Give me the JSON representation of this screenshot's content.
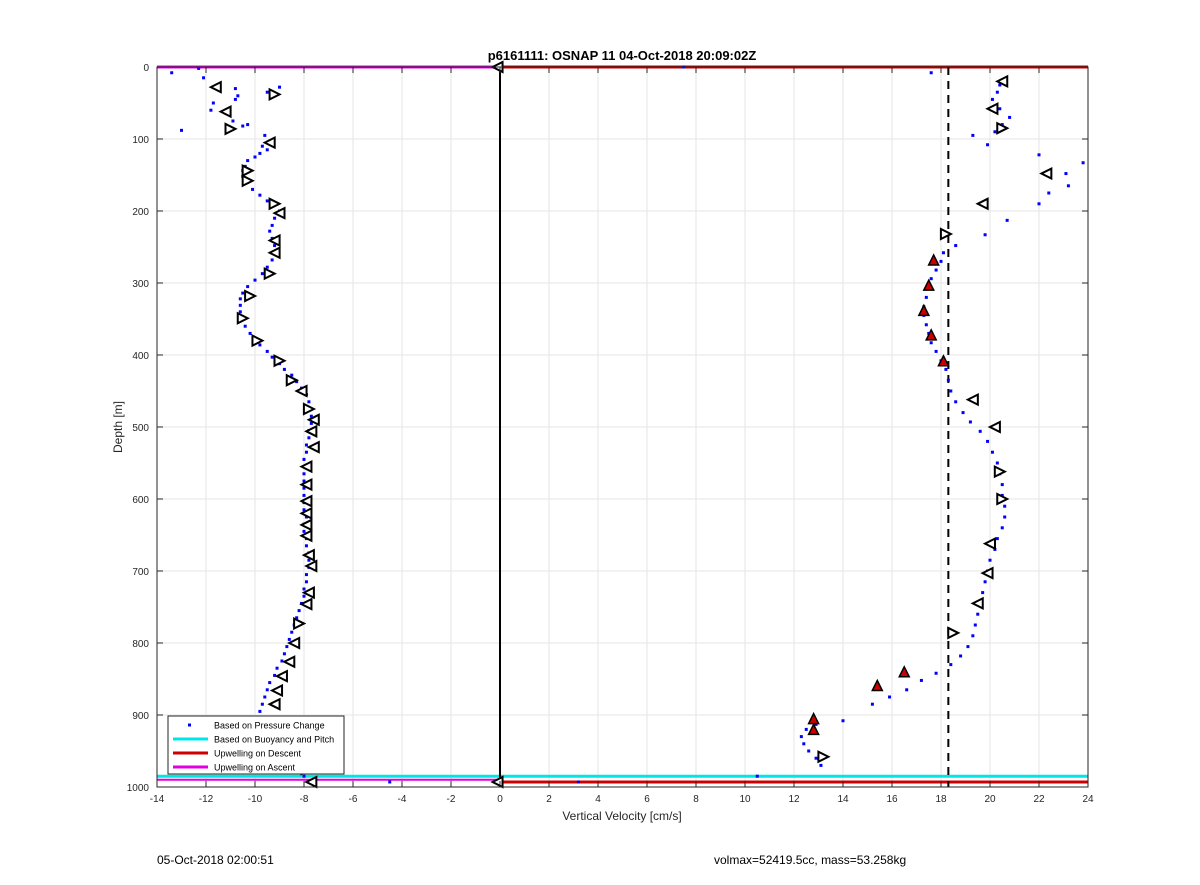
{
  "chart_data": {
    "type": "scatter",
    "title": "p6161111: OSNAP 11 04-Oct-2018 20:09:02Z",
    "xlabel": "Vertical Velocity [cm/s]",
    "ylabel": "Depth [m]",
    "xlim": [
      -14,
      24
    ],
    "ylim": [
      0,
      1000
    ],
    "y_reversed": true,
    "grid": true,
    "xticks": [
      "-14",
      "-12",
      "-10",
      "-8",
      "-6",
      "-4",
      "-2",
      "0",
      "2",
      "4",
      "6",
      "8",
      "10",
      "12",
      "14",
      "16",
      "18",
      "20",
      "22",
      "24"
    ],
    "yticks": [
      "0",
      "100",
      "200",
      "300",
      "400",
      "500",
      "600",
      "700",
      "800",
      "900",
      "1000"
    ],
    "legend": {
      "location": "bottom-left",
      "entries": [
        {
          "label": "Based on Pressure Change",
          "color": "#0000ff"
        },
        {
          "label": "Based on Buoyancy and Pitch",
          "color": "#00e5e5"
        },
        {
          "label": "Upwelling on Descent",
          "color": "#cc0000"
        },
        {
          "label": "Upwelling on Ascent",
          "color": "#e000e0"
        }
      ]
    },
    "colors": {
      "pressure": "#0000ff",
      "buoyancy": "#00e5e5",
      "descent": "#cc0000",
      "ascent": "#e000e0"
    },
    "reference_lines": {
      "zero_x": 0,
      "dashed_x": 18.3,
      "top_red_depth": 0,
      "top_magenta_depth": 0,
      "bottom_cyan_depth": 985,
      "bottom_red_depth": 993,
      "bottom_magenta_depth": 990
    },
    "descent_points": [
      [
        -13.4,
        8
      ],
      [
        -12.3,
        2
      ],
      [
        -12.1,
        15
      ],
      [
        -11.7,
        50
      ],
      [
        -11.8,
        60
      ],
      [
        -11.1,
        60
      ],
      [
        -10.8,
        45
      ],
      [
        -10.7,
        40
      ],
      [
        -10.9,
        75
      ],
      [
        -10.5,
        82
      ],
      [
        -10.3,
        80
      ],
      [
        -9.6,
        95
      ],
      [
        -9.4,
        103
      ],
      [
        -9.7,
        110
      ],
      [
        -9.5,
        115
      ],
      [
        -9.8,
        120
      ],
      [
        -10.0,
        125
      ],
      [
        -10.3,
        130
      ],
      [
        -10.4,
        138
      ],
      [
        -10.5,
        144
      ],
      [
        -10.5,
        152
      ],
      [
        -10.3,
        160
      ],
      [
        -10.1,
        170
      ],
      [
        -9.8,
        178
      ],
      [
        -9.5,
        186
      ],
      [
        -9.1,
        190
      ],
      [
        -9.0,
        200
      ],
      [
        -9.2,
        210
      ],
      [
        -9.3,
        220
      ],
      [
        -9.4,
        228
      ],
      [
        -9.3,
        238
      ],
      [
        -9.2,
        248
      ],
      [
        -9.3,
        258
      ],
      [
        -9.3,
        268
      ],
      [
        -9.5,
        278
      ],
      [
        -9.7,
        287
      ],
      [
        -10.0,
        296
      ],
      [
        -10.3,
        305
      ],
      [
        -10.5,
        314
      ],
      [
        -10.6,
        322
      ],
      [
        -10.6,
        331
      ],
      [
        -10.6,
        340
      ],
      [
        -10.5,
        350
      ],
      [
        -10.4,
        360
      ],
      [
        -10.2,
        370
      ],
      [
        -10.0,
        378
      ],
      [
        -9.8,
        386
      ],
      [
        -9.5,
        395
      ],
      [
        -9.3,
        403
      ],
      [
        -9.0,
        412
      ],
      [
        -8.8,
        420
      ],
      [
        -8.5,
        428
      ],
      [
        -8.3,
        437
      ],
      [
        -8.1,
        446
      ],
      [
        -7.9,
        455
      ],
      [
        -7.8,
        465
      ],
      [
        -7.7,
        475
      ],
      [
        -7.7,
        485
      ],
      [
        -7.7,
        495
      ],
      [
        -7.8,
        505
      ],
      [
        -7.8,
        515
      ],
      [
        -7.9,
        525
      ],
      [
        -7.9,
        535
      ],
      [
        -8.0,
        545
      ],
      [
        -8.0,
        555
      ],
      [
        -8.0,
        565
      ],
      [
        -8.0,
        575
      ],
      [
        -8.0,
        585
      ],
      [
        -8.0,
        595
      ],
      [
        -8.0,
        605
      ],
      [
        -8.0,
        615
      ],
      [
        -7.9,
        625
      ],
      [
        -8.0,
        635
      ],
      [
        -8.0,
        645
      ],
      [
        -7.9,
        655
      ],
      [
        -7.9,
        665
      ],
      [
        -7.8,
        675
      ],
      [
        -7.8,
        685
      ],
      [
        -7.8,
        695
      ],
      [
        -7.9,
        705
      ],
      [
        -7.9,
        715
      ],
      [
        -8.0,
        725
      ],
      [
        -8.0,
        735
      ],
      [
        -8.1,
        745
      ],
      [
        -8.2,
        755
      ],
      [
        -8.3,
        765
      ],
      [
        -8.4,
        775
      ],
      [
        -8.5,
        785
      ],
      [
        -8.6,
        795
      ],
      [
        -8.7,
        805
      ],
      [
        -8.8,
        815
      ],
      [
        -8.9,
        825
      ],
      [
        -9.1,
        835
      ],
      [
        -9.2,
        845
      ],
      [
        -9.4,
        855
      ],
      [
        -9.5,
        865
      ],
      [
        -9.6,
        875
      ],
      [
        -9.7,
        885
      ],
      [
        -9.8,
        895
      ],
      [
        -9.9,
        905
      ],
      [
        -9.9,
        915
      ],
      [
        -9.7,
        925
      ],
      [
        -9.5,
        935
      ],
      [
        -9.2,
        945
      ],
      [
        -8.9,
        955
      ],
      [
        -8.6,
        965
      ],
      [
        -8.3,
        975
      ],
      [
        -8.0,
        985
      ],
      [
        -4.5,
        993
      ],
      [
        -13.0,
        88
      ],
      [
        -9.5,
        35
      ],
      [
        -9.0,
        28
      ],
      [
        -10.8,
        30
      ]
    ],
    "ascent_points": [
      [
        17.6,
        8
      ],
      [
        7.5,
        0
      ],
      [
        20.4,
        25
      ],
      [
        20.3,
        35
      ],
      [
        20.1,
        45
      ],
      [
        20.4,
        58
      ],
      [
        20.8,
        70
      ],
      [
        20.5,
        80
      ],
      [
        20.2,
        90
      ],
      [
        19.3,
        95
      ],
      [
        19.9,
        108
      ],
      [
        22.0,
        122
      ],
      [
        23.8,
        133
      ],
      [
        23.1,
        148
      ],
      [
        23.2,
        165
      ],
      [
        22.4,
        175
      ],
      [
        22.0,
        190
      ],
      [
        20.7,
        213
      ],
      [
        19.8,
        233
      ],
      [
        18.6,
        248
      ],
      [
        18.1,
        258
      ],
      [
        18.0,
        270
      ],
      [
        17.8,
        282
      ],
      [
        17.6,
        294
      ],
      [
        17.5,
        308
      ],
      [
        17.4,
        320
      ],
      [
        17.3,
        333
      ],
      [
        17.3,
        345
      ],
      [
        17.4,
        358
      ],
      [
        17.5,
        370
      ],
      [
        17.6,
        383
      ],
      [
        17.8,
        395
      ],
      [
        18.0,
        408
      ],
      [
        18.2,
        420
      ],
      [
        18.3,
        435
      ],
      [
        18.4,
        450
      ],
      [
        18.6,
        465
      ],
      [
        18.9,
        480
      ],
      [
        19.2,
        493
      ],
      [
        19.6,
        506
      ],
      [
        19.9,
        520
      ],
      [
        20.1,
        535
      ],
      [
        20.3,
        550
      ],
      [
        20.4,
        565
      ],
      [
        20.5,
        580
      ],
      [
        20.5,
        595
      ],
      [
        20.6,
        610
      ],
      [
        20.6,
        625
      ],
      [
        20.5,
        640
      ],
      [
        20.3,
        655
      ],
      [
        20.2,
        670
      ],
      [
        20.0,
        685
      ],
      [
        19.9,
        700
      ],
      [
        19.8,
        715
      ],
      [
        19.7,
        730
      ],
      [
        19.6,
        745
      ],
      [
        19.5,
        760
      ],
      [
        19.4,
        775
      ],
      [
        19.3,
        790
      ],
      [
        19.1,
        805
      ],
      [
        18.8,
        818
      ],
      [
        18.4,
        830
      ],
      [
        17.8,
        842
      ],
      [
        17.2,
        852
      ],
      [
        16.6,
        865
      ],
      [
        15.9,
        875
      ],
      [
        15.2,
        885
      ],
      [
        14.0,
        908
      ],
      [
        12.9,
        913
      ],
      [
        12.5,
        920
      ],
      [
        12.3,
        930
      ],
      [
        12.4,
        940
      ],
      [
        12.6,
        950
      ],
      [
        12.9,
        960
      ],
      [
        13.1,
        970
      ],
      [
        10.5,
        985
      ],
      [
        3.2,
        993
      ]
    ],
    "triangles": [
      {
        "x": -11.6,
        "y": 28,
        "dir": "left"
      },
      {
        "x": -9.2,
        "y": 38,
        "dir": "right"
      },
      {
        "x": -11.2,
        "y": 62,
        "dir": "left"
      },
      {
        "x": -11.0,
        "y": 86,
        "dir": "right"
      },
      {
        "x": -9.4,
        "y": 105,
        "dir": "left"
      },
      {
        "x": -10.3,
        "y": 144,
        "dir": "right"
      },
      {
        "x": -10.3,
        "y": 158,
        "dir": "right"
      },
      {
        "x": -9.2,
        "y": 190,
        "dir": "right"
      },
      {
        "x": -9.0,
        "y": 203,
        "dir": "left"
      },
      {
        "x": -9.2,
        "y": 241,
        "dir": "left"
      },
      {
        "x": -9.2,
        "y": 258,
        "dir": "left"
      },
      {
        "x": -9.4,
        "y": 287,
        "dir": "right"
      },
      {
        "x": -10.2,
        "y": 318,
        "dir": "right"
      },
      {
        "x": -10.5,
        "y": 349,
        "dir": "right"
      },
      {
        "x": -9.9,
        "y": 380,
        "dir": "right"
      },
      {
        "x": -9.0,
        "y": 408,
        "dir": "right"
      },
      {
        "x": -8.5,
        "y": 435,
        "dir": "right"
      },
      {
        "x": -8.1,
        "y": 450,
        "dir": "left"
      },
      {
        "x": -7.8,
        "y": 475,
        "dir": "right"
      },
      {
        "x": -7.6,
        "y": 490,
        "dir": "left"
      },
      {
        "x": -7.7,
        "y": 506,
        "dir": "left"
      },
      {
        "x": -7.6,
        "y": 528,
        "dir": "left"
      },
      {
        "x": -7.9,
        "y": 555,
        "dir": "left"
      },
      {
        "x": -7.9,
        "y": 580,
        "dir": "left"
      },
      {
        "x": -7.9,
        "y": 603,
        "dir": "left"
      },
      {
        "x": -7.9,
        "y": 620,
        "dir": "left"
      },
      {
        "x": -7.9,
        "y": 636,
        "dir": "left"
      },
      {
        "x": -7.9,
        "y": 651,
        "dir": "left"
      },
      {
        "x": -7.8,
        "y": 678,
        "dir": "left"
      },
      {
        "x": -7.7,
        "y": 693,
        "dir": "left"
      },
      {
        "x": -7.8,
        "y": 730,
        "dir": "left"
      },
      {
        "x": -7.9,
        "y": 746,
        "dir": "left"
      },
      {
        "x": -8.2,
        "y": 773,
        "dir": "right"
      },
      {
        "x": -8.4,
        "y": 800,
        "dir": "left"
      },
      {
        "x": -8.6,
        "y": 826,
        "dir": "left"
      },
      {
        "x": -8.9,
        "y": 846,
        "dir": "left"
      },
      {
        "x": -9.1,
        "y": 866,
        "dir": "left"
      },
      {
        "x": -9.2,
        "y": 885,
        "dir": "left"
      },
      {
        "x": -9.8,
        "y": 925,
        "dir": "right"
      },
      {
        "x": -9.0,
        "y": 948,
        "dir": "right"
      },
      {
        "x": -7.9,
        "y": 975,
        "dir": "right"
      },
      {
        "x": -7.7,
        "y": 993,
        "dir": "left"
      },
      {
        "x": -0.1,
        "y": 993,
        "dir": "left"
      },
      {
        "x": -0.1,
        "y": 0,
        "dir": "left"
      },
      {
        "x": 20.5,
        "y": 20,
        "dir": "left"
      },
      {
        "x": 20.1,
        "y": 58,
        "dir": "left"
      },
      {
        "x": 20.5,
        "y": 85,
        "dir": "right"
      },
      {
        "x": 22.3,
        "y": 148,
        "dir": "left"
      },
      {
        "x": 19.7,
        "y": 190,
        "dir": "left"
      },
      {
        "x": 18.2,
        "y": 232,
        "dir": "right"
      },
      {
        "x": 19.3,
        "y": 462,
        "dir": "left"
      },
      {
        "x": 20.2,
        "y": 500,
        "dir": "left"
      },
      {
        "x": 20.4,
        "y": 562,
        "dir": "right"
      },
      {
        "x": 20.5,
        "y": 600,
        "dir": "right"
      },
      {
        "x": 20.0,
        "y": 662,
        "dir": "left"
      },
      {
        "x": 19.9,
        "y": 703,
        "dir": "left"
      },
      {
        "x": 19.5,
        "y": 745,
        "dir": "left"
      },
      {
        "x": 18.5,
        "y": 786,
        "dir": "right"
      },
      {
        "x": 13.2,
        "y": 958,
        "dir": "right"
      }
    ],
    "red_triangles": [
      {
        "x": 17.7,
        "y": 268
      },
      {
        "x": 17.5,
        "y": 303
      },
      {
        "x": 17.3,
        "y": 338
      },
      {
        "x": 17.6,
        "y": 372
      },
      {
        "x": 18.1,
        "y": 408
      },
      {
        "x": 16.5,
        "y": 840
      },
      {
        "x": 15.4,
        "y": 859
      },
      {
        "x": 12.8,
        "y": 905
      },
      {
        "x": 12.8,
        "y": 920
      }
    ]
  },
  "footer": {
    "timestamp": "05-Oct-2018 02:00:51",
    "info": "volmax=52419.5cc, mass=53.258kg"
  }
}
